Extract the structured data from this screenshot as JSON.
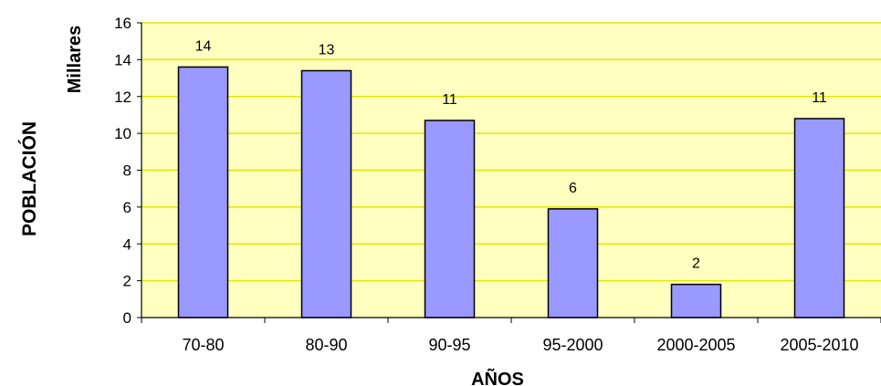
{
  "chart_data": {
    "type": "bar",
    "categories": [
      "70-80",
      "80-90",
      "90-95",
      "95-2000",
      "2000-2005",
      "2005-2010"
    ],
    "values": [
      13.6,
      13.4,
      10.7,
      5.9,
      1.8,
      10.8
    ],
    "data_labels": [
      "14",
      "13",
      "11",
      "6",
      "2",
      "11"
    ],
    "ylabel": "POBLACIÓN",
    "yunit": "Millares",
    "xlabel": "AÑOS",
    "ylim": [
      0,
      16
    ],
    "yticks": [
      0,
      2,
      4,
      6,
      8,
      10,
      12,
      14,
      16
    ],
    "grid": true,
    "colors": {
      "plot_bg": "#FFFFC0",
      "bar_fill": "#9999FF",
      "bar_stroke": "#000000",
      "grid": "#E6E600"
    }
  }
}
